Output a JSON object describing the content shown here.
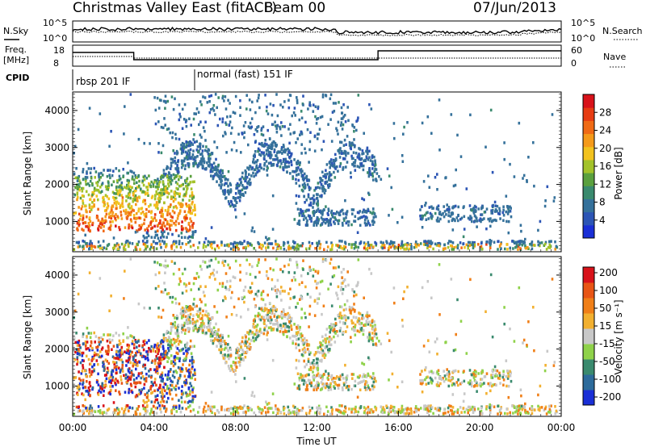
{
  "header": {
    "title": "Christmas Valley East (fitACF)",
    "beam": "Beam 00",
    "date": "07/Jun/2013"
  },
  "status_panels": {
    "noise_left_label": "N.Sky",
    "noise_left_ticks": [
      "10^5",
      "10^0"
    ],
    "noise_right_ticks": [
      "10^5",
      "10^0"
    ],
    "noise_right_label": "N.Search",
    "freq_label_line1": "Freq.",
    "freq_label_line2": "[MHz]",
    "freq_ticks": [
      "18",
      "8"
    ],
    "nave_ticks": [
      "60",
      "0"
    ],
    "nave_label": "Nave",
    "cpid_label": "CPID",
    "cpid_segments": [
      {
        "label": "rbsp 201 IF",
        "start_hour": 0
      },
      {
        "label": "normal (fast) 151 IF",
        "start_hour": 6
      }
    ]
  },
  "chart_data": [
    {
      "type": "heatmap",
      "name": "power",
      "ylabel": "Slant Range [km]",
      "yticks": [
        "1000",
        "2000",
        "3000",
        "4000"
      ],
      "ylim": [
        180,
        4500
      ],
      "xlim_hours": [
        0,
        24
      ],
      "colorbar": {
        "label": "Power [dB]",
        "ticks": [
          "4",
          "8",
          "12",
          "16",
          "20",
          "24",
          "28"
        ],
        "range": [
          0,
          32
        ]
      }
    },
    {
      "type": "heatmap",
      "name": "velocity",
      "ylabel": "Slant Range [km]",
      "yticks": [
        "1000",
        "2000",
        "3000",
        "4000"
      ],
      "ylim": [
        180,
        4500
      ],
      "xlim_hours": [
        0,
        24
      ],
      "colorbar": {
        "label": "Velocity [m s⁻¹]",
        "ticks": [
          "200",
          "100",
          "50",
          "15",
          "-15",
          "-50",
          "-100",
          "-200"
        ]
      }
    }
  ],
  "x_axis": {
    "label": "Time UT",
    "ticks": [
      "00:00",
      "04:00",
      "08:00",
      "12:00",
      "16:00",
      "20:00",
      "00:00"
    ]
  },
  "colors": {
    "power_scale": [
      "#1a2fd6",
      "#2c55b5",
      "#35719b",
      "#3a8a6e",
      "#5aa03e",
      "#a3c22a",
      "#f2c21e",
      "#f59a1a",
      "#f06a15",
      "#e63b12",
      "#d8121a"
    ],
    "velocity_scale": [
      "#1a2fd6",
      "#2d6b9b",
      "#3a8a6e",
      "#8fd24a",
      "#c8c8c8",
      "#f2b030",
      "#f07f18",
      "#e85515",
      "#d8121a"
    ]
  }
}
